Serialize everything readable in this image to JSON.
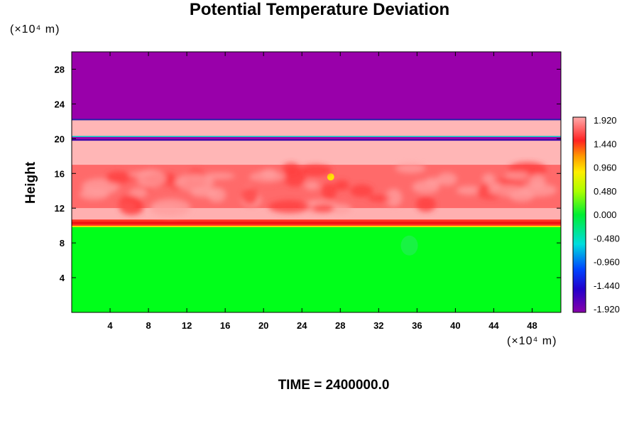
{
  "chart_data": {
    "type": "heatmap",
    "title": "Potential Temperature Deviation",
    "ylabel": "Height",
    "x_unit": "(×10⁴ m)",
    "y_unit": "(×10⁴ m)",
    "footer": "TIME = 2400000.0",
    "xlim": [
      0,
      51
    ],
    "ylim": [
      0,
      30
    ],
    "x_ticks": [
      "4",
      "8",
      "12",
      "16",
      "20",
      "24",
      "28",
      "32",
      "36",
      "40",
      "44",
      "48"
    ],
    "y_ticks": [
      "4",
      "8",
      "12",
      "16",
      "20",
      "24",
      "28"
    ],
    "colorbar": {
      "labels": [
        "1.920",
        "1.440",
        "0.960",
        "0.480",
        "0.000",
        "-0.480",
        "-0.960",
        "-1.440",
        "-1.920"
      ],
      "range": [
        -1.92,
        1.92
      ]
    },
    "bands": [
      {
        "y0": 0,
        "y1": 9.9,
        "value": 0.0
      },
      {
        "y0": 9.9,
        "y1": 10.7,
        "value": 1.1
      },
      {
        "y0": 10.7,
        "y1": 12.0,
        "value": 1.8
      },
      {
        "y0": 12.0,
        "y1": 17.0,
        "value": 1.5
      },
      {
        "y0": 17.0,
        "y1": 19.8,
        "value": 1.92
      },
      {
        "y0": 19.8,
        "y1": 20.3,
        "value": -1.9
      },
      {
        "y0": 20.3,
        "y1": 22.2,
        "value": 1.92
      },
      {
        "y0": 22.2,
        "y1": 30.0,
        "value": -1.92
      }
    ]
  }
}
